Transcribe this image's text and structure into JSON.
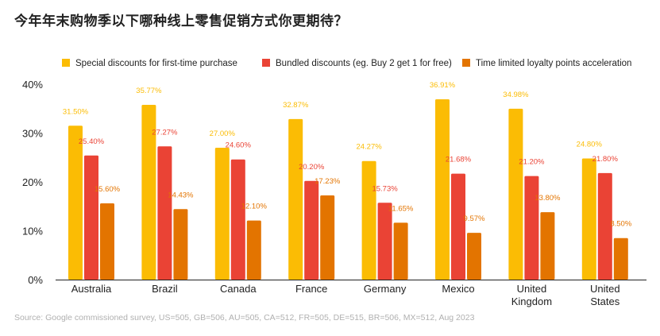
{
  "title": "今年年末购物季以下哪种线上零售促销方式你更期待？",
  "source": "Source: Google commissioned survey, US=505, GB=506, AU=505, CA=512, FR=505, DE=515, BR=506, MX=512, Aug 2023",
  "chart_data": {
    "type": "bar",
    "categories": [
      [
        "Australia"
      ],
      [
        "Brazil"
      ],
      [
        "Canada"
      ],
      [
        "France"
      ],
      [
        "Germany"
      ],
      [
        "Mexico"
      ],
      [
        "United",
        "Kingdom"
      ],
      [
        "United",
        "States"
      ]
    ],
    "series": [
      {
        "name": "Special discounts for first-time purchase",
        "color": "#FBBC04",
        "values": [
          31.5,
          35.77,
          27.0,
          32.87,
          24.27,
          36.91,
          34.98,
          24.8
        ],
        "labels": [
          "31.50%",
          "35.77%",
          "27.00%",
          "32.87%",
          "24.27%",
          "36.91%",
          "34.98%",
          "24.80%"
        ]
      },
      {
        "name": "Bundled discounts (eg. Buy 2 get 1 for free)",
        "color": "#EA4335",
        "values": [
          25.4,
          27.27,
          24.6,
          20.2,
          15.73,
          21.68,
          21.2,
          21.8
        ],
        "labels": [
          "25.40%",
          "27.27%",
          "24.60%",
          "20.20%",
          "15.73%",
          "21.68%",
          "21.20%",
          "21.80%"
        ]
      },
      {
        "name": "Time limited loyalty points acceleration",
        "color": "#E37400",
        "values": [
          15.6,
          14.43,
          12.1,
          17.23,
          11.65,
          9.57,
          13.8,
          8.5
        ],
        "labels": [
          "15.60%",
          "14.43%",
          "12.10%",
          "17.23%",
          "11.65%",
          "9.57%",
          "13.80%",
          "8.50%"
        ]
      }
    ],
    "yticks": [
      "0%",
      "10%",
      "20%",
      "30%",
      "40%"
    ],
    "ylim": [
      0,
      40
    ],
    "legend_position": "top",
    "grid": false
  }
}
